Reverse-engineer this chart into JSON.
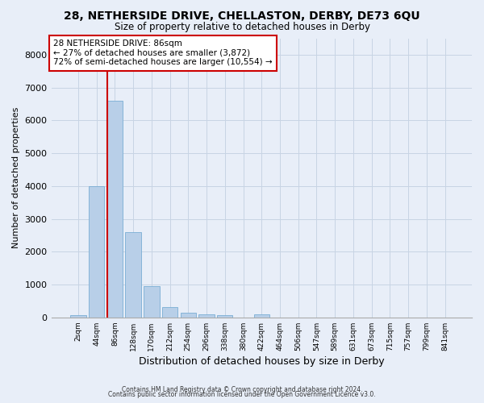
{
  "title": "28, NETHERSIDE DRIVE, CHELLASTON, DERBY, DE73 6QU",
  "subtitle": "Size of property relative to detached houses in Derby",
  "xlabel": "Distribution of detached houses by size in Derby",
  "ylabel": "Number of detached properties",
  "categories": [
    "2sqm",
    "44sqm",
    "86sqm",
    "128sqm",
    "170sqm",
    "212sqm",
    "254sqm",
    "296sqm",
    "338sqm",
    "380sqm",
    "422sqm",
    "464sqm",
    "506sqm",
    "547sqm",
    "589sqm",
    "631sqm",
    "673sqm",
    "715sqm",
    "757sqm",
    "799sqm",
    "841sqm"
  ],
  "values": [
    80,
    4000,
    6600,
    2600,
    950,
    320,
    140,
    100,
    80,
    0,
    100,
    0,
    0,
    0,
    0,
    0,
    0,
    0,
    0,
    0,
    0
  ],
  "bar_color": "#b8cfe8",
  "bar_edge_color": "#7aadd4",
  "highlight_index": 2,
  "highlight_line_color": "#cc0000",
  "annotation_line1": "28 NETHERSIDE DRIVE: 86sqm",
  "annotation_line2": "← 27% of detached houses are smaller (3,872)",
  "annotation_line3": "72% of semi-detached houses are larger (10,554) →",
  "annotation_box_color": "#ffffff",
  "annotation_box_edge_color": "#cc0000",
  "ylim": [
    0,
    8500
  ],
  "yticks": [
    0,
    1000,
    2000,
    3000,
    4000,
    5000,
    6000,
    7000,
    8000
  ],
  "grid_color": "#c8d4e4",
  "bg_color": "#e8eef8",
  "footer1": "Contains HM Land Registry data © Crown copyright and database right 2024.",
  "footer2": "Contains public sector information licensed under the Open Government Licence v3.0."
}
